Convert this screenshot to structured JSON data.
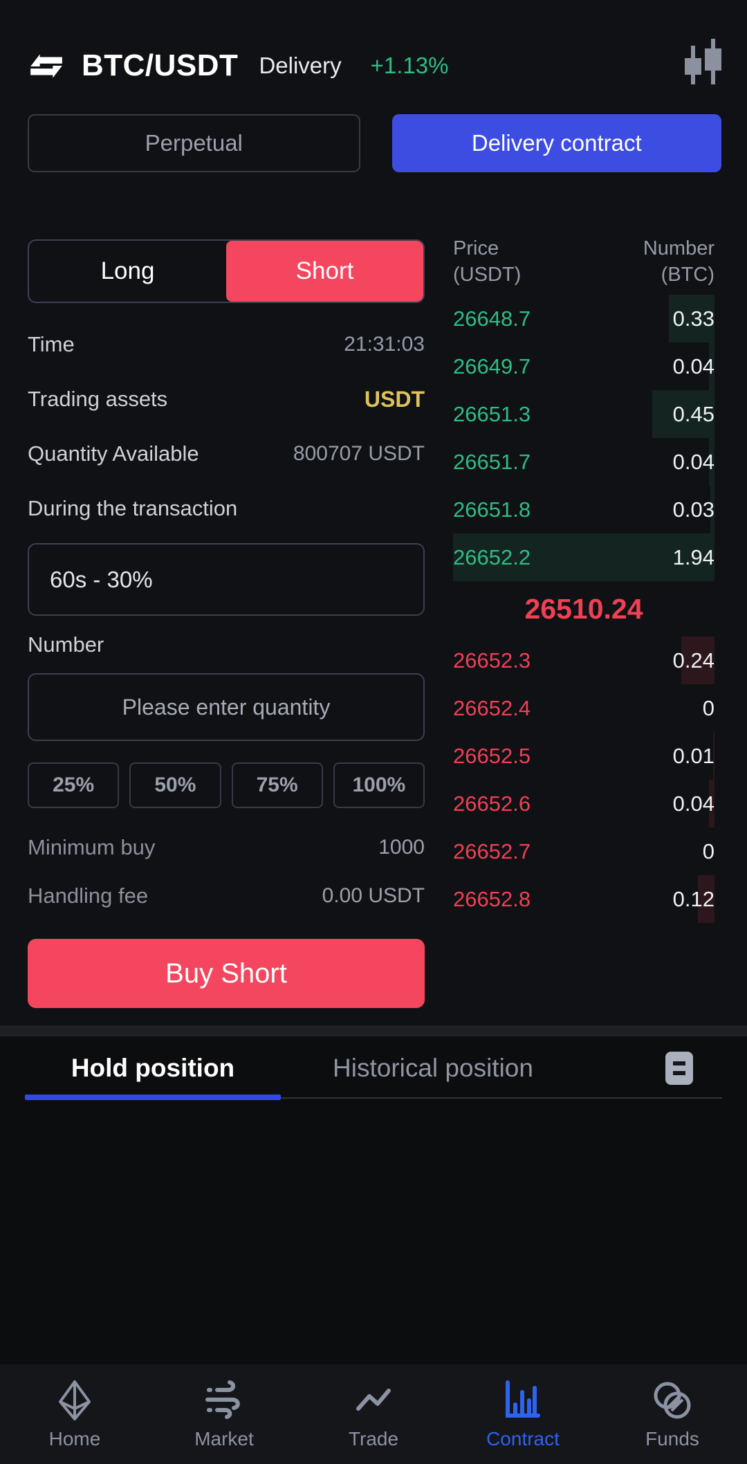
{
  "header": {
    "pair": "BTC/USDT",
    "market_type": "Delivery",
    "change": "+1.13%"
  },
  "contract_tabs": {
    "perpetual": "Perpetual",
    "delivery": "Delivery contract"
  },
  "side_toggle": {
    "long": "Long",
    "short": "Short"
  },
  "form": {
    "time_label": "Time",
    "time_value": "21:31:03",
    "assets_label": "Trading assets",
    "assets_value": "USDT",
    "available_label": "Quantity Available",
    "available_value": "800707 USDT",
    "duration_label": "During the transaction",
    "duration_value": "60s - 30%",
    "number_label": "Number",
    "quantity_placeholder": "Please enter quantity",
    "percent_options": [
      "25%",
      "50%",
      "75%",
      "100%"
    ],
    "min_buy_label": "Minimum buy",
    "min_buy_value": "1000",
    "fee_label": "Handling fee",
    "fee_value": "0.00 USDT",
    "submit_label": "Buy Short"
  },
  "orderbook": {
    "price_header": "Price",
    "price_unit": "(USDT)",
    "number_header": "Number",
    "number_unit": "(BTC)",
    "upper": [
      {
        "price": "26648.7",
        "amount": "0.33"
      },
      {
        "price": "26649.7",
        "amount": "0.04"
      },
      {
        "price": "26651.3",
        "amount": "0.45"
      },
      {
        "price": "26651.7",
        "amount": "0.04"
      },
      {
        "price": "26651.8",
        "amount": "0.03"
      },
      {
        "price": "26652.2",
        "amount": "1.94"
      }
    ],
    "last_price": "26510.24",
    "lower": [
      {
        "price": "26652.3",
        "amount": "0.24"
      },
      {
        "price": "26652.4",
        "amount": "0"
      },
      {
        "price": "26652.5",
        "amount": "0.01"
      },
      {
        "price": "26652.6",
        "amount": "0.04"
      },
      {
        "price": "26652.7",
        "amount": "0"
      },
      {
        "price": "26652.8",
        "amount": "0.12"
      }
    ]
  },
  "positions": {
    "hold_tab": "Hold position",
    "history_tab": "Historical position"
  },
  "nav": {
    "items": [
      {
        "label": "Home",
        "icon": "ethereum-icon",
        "active": false
      },
      {
        "label": "Market",
        "icon": "wind-icon",
        "active": false
      },
      {
        "label": "Trade",
        "icon": "trend-line-icon",
        "active": false
      },
      {
        "label": "Contract",
        "icon": "bar-chart-icon",
        "active": true
      },
      {
        "label": "Funds",
        "icon": "overlap-coins-icon",
        "active": false
      }
    ]
  },
  "colors": {
    "up_green": "#2ebd85",
    "down_red": "#ee4057",
    "action_red": "#f4465f",
    "accent_blue": "#3d4de2",
    "nav_active_blue": "#2e63f0",
    "usdt_yellow": "#ddc25c",
    "background": "#101114"
  }
}
